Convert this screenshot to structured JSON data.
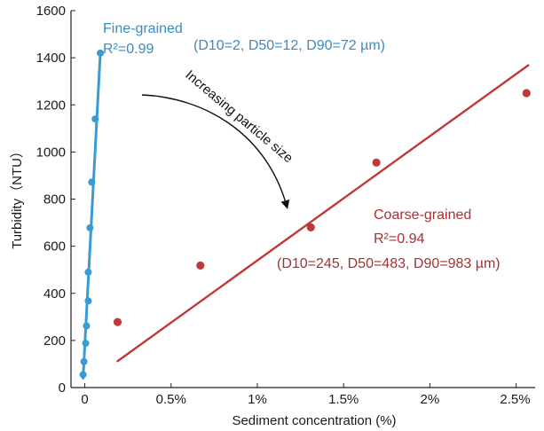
{
  "chart_data": {
    "type": "scatter",
    "xlabel": "Sediment concentration (%)",
    "ylabel": "Turbidity（NTU）",
    "xlim": [
      -0.0008,
      0.0261
    ],
    "ylim": [
      0,
      1600
    ],
    "x_ticks": [
      0,
      0.005,
      0.01,
      0.015,
      0.02,
      0.025
    ],
    "x_tick_labels": [
      "0",
      "0.5%",
      "1%",
      "1.5%",
      "2%",
      "2.5%"
    ],
    "y_ticks": [
      0,
      200,
      400,
      600,
      800,
      1000,
      1200,
      1400,
      1600
    ],
    "y_tick_labels": [
      "0",
      "200",
      "400",
      "600",
      "800",
      "1000",
      "1200",
      "1400",
      "1600"
    ],
    "grid": false,
    "series": [
      {
        "name": "Fine-grained",
        "color": "#3a9bd3",
        "annotation": "Fine-grained",
        "r2_label": "R²=0.99",
        "size_label": "(D10=2, D50=12, D90=72 µm)",
        "x": [
          -0.0001,
          -5e-05,
          5e-05,
          0.0001,
          0.0002,
          0.0002,
          0.0003,
          0.0004,
          0.0006,
          0.0009
        ],
        "y": [
          55,
          110,
          188,
          262,
          368,
          490,
          678,
          872,
          1140,
          1420
        ],
        "fit": [
          [
            -0.0001,
            40
          ],
          [
            0.0009,
            1420
          ]
        ]
      },
      {
        "name": "Coarse-grained",
        "color": "#be3a3a",
        "annotation": "Coarse-grained",
        "r2_label": "R²=0.94",
        "size_label": "(D10=245, D50=483, D90=983 µm)",
        "x": [
          0.0019,
          0.0067,
          0.0131,
          0.0169,
          0.0256
        ],
        "y": [
          278,
          518,
          680,
          955,
          1250
        ],
        "fit": [
          [
            0.0019,
            112
          ],
          [
            0.0257,
            1368
          ]
        ]
      }
    ],
    "annotation_arrow": "Increasing particle size"
  }
}
